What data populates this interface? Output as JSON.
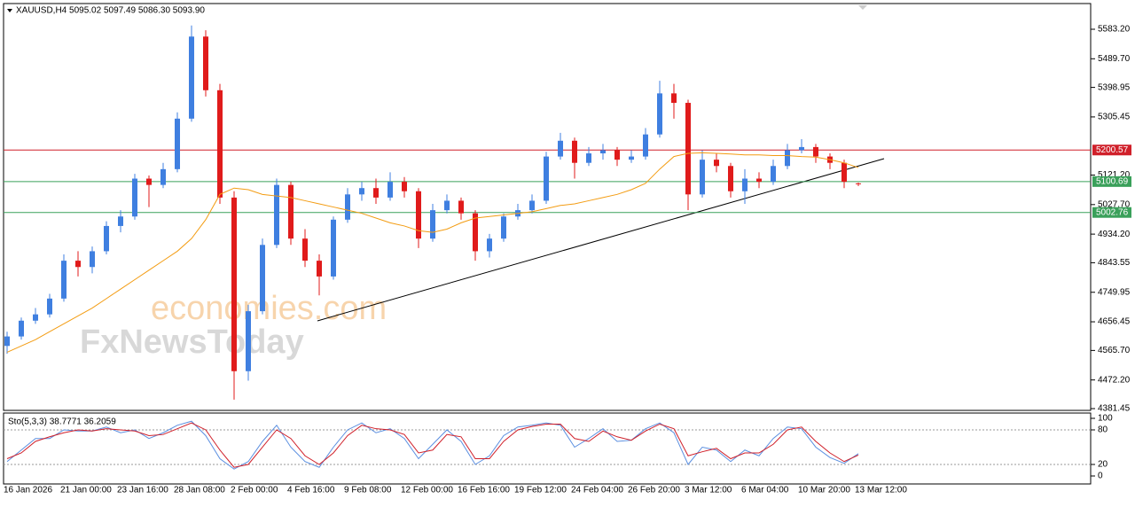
{
  "chart_data": [
    {
      "type": "candlestick",
      "title": "XAUUSD,H4 5095.02 5097.49 5086.30 5093.90",
      "watermark": [
        "economies.com",
        "FxNewsToday"
      ],
      "categories": [
        "16 Jan 2026",
        null,
        null,
        null,
        "21 Jan 00:00",
        null,
        null,
        null,
        "23 Jan 16:00",
        null,
        null,
        null,
        "28 Jan 08:00",
        null,
        null,
        null,
        "2 Feb 00:00",
        null,
        null,
        null,
        "4 Feb 16:00",
        null,
        null,
        null,
        "9 Feb 08:00",
        null,
        null,
        null,
        "12 Feb 00:00",
        null,
        null,
        null,
        "16 Feb 16:00",
        null,
        null,
        null,
        "19 Feb 12:00",
        null,
        null,
        null,
        "24 Feb 04:00",
        null,
        null,
        null,
        "26 Feb 20:00",
        null,
        null,
        null,
        "3 Mar 12:00",
        null,
        null,
        null,
        "6 Mar 04:00",
        null,
        null,
        null,
        "10 Mar 20:00",
        null,
        null,
        null,
        "13 Mar 12:00"
      ],
      "open": [
        4580,
        4610,
        4660,
        4680,
        4730,
        4850,
        4830,
        4880,
        4960,
        4990,
        5110,
        5090,
        5140,
        5300,
        5560,
        5390,
        5050,
        4500,
        4690,
        4900,
        5090,
        4920,
        4850,
        4800,
        4980,
        5060,
        5080,
        5050,
        5100,
        5070,
        4920,
        5010,
        5040,
        5000,
        4880,
        4920,
        4990,
        5010,
        5040,
        5180,
        5230,
        5160,
        5190,
        5200,
        5170,
        5180,
        5250,
        5380,
        5350,
        5060,
        5170,
        5150,
        5070,
        5110,
        5100,
        5150,
        5200,
        5210,
        5180,
        5160,
        5095.02
      ],
      "high": [
        4625,
        4670,
        4700,
        4745,
        4870,
        4880,
        4895,
        4975,
        5010,
        5125,
        5120,
        5160,
        5320,
        5595,
        5580,
        5410,
        5070,
        4710,
        4920,
        5110,
        5100,
        4950,
        4870,
        4990,
        5080,
        5100,
        5110,
        5130,
        5115,
        5080,
        5030,
        5060,
        5050,
        5010,
        4935,
        5000,
        5030,
        5060,
        5195,
        5255,
        5240,
        5210,
        5220,
        5210,
        5200,
        5270,
        5420,
        5410,
        5360,
        5200,
        5190,
        5160,
        5140,
        5130,
        5170,
        5220,
        5235,
        5220,
        5190,
        5170,
        5097.49
      ],
      "low": [
        4555,
        4600,
        4650,
        4670,
        4720,
        4800,
        4810,
        4870,
        4940,
        4980,
        5020,
        5080,
        5130,
        5290,
        5370,
        5030,
        4410,
        4470,
        4680,
        4890,
        4900,
        4830,
        4740,
        4790,
        4970,
        5040,
        5030,
        5040,
        5050,
        4890,
        4910,
        5000,
        4980,
        4850,
        4860,
        4910,
        4980,
        5000,
        5030,
        5170,
        5110,
        5150,
        5170,
        5150,
        5160,
        5170,
        5240,
        5300,
        5010,
        5050,
        5130,
        5050,
        5030,
        5080,
        5090,
        5140,
        5190,
        5160,
        5140,
        5080,
        5086.3
      ],
      "close": [
        4610,
        4660,
        4680,
        4730,
        4850,
        4830,
        4880,
        4960,
        4990,
        5110,
        5090,
        5140,
        5300,
        5560,
        5390,
        5050,
        4500,
        4690,
        4900,
        5090,
        4920,
        4850,
        4800,
        4980,
        5060,
        5080,
        5050,
        5100,
        5070,
        4920,
        5010,
        5040,
        5000,
        4880,
        4920,
        4990,
        5010,
        5040,
        5180,
        5230,
        5160,
        5190,
        5200,
        5170,
        5180,
        5250,
        5380,
        5350,
        5060,
        5170,
        5150,
        5070,
        5110,
        5100,
        5150,
        5200,
        5210,
        5180,
        5160,
        5100,
        5093.9
      ],
      "ma": {
        "color": "#f39c12",
        "values": [
          4560,
          4580,
          4600,
          4625,
          4650,
          4675,
          4700,
          4730,
          4760,
          4790,
          4820,
          4850,
          4880,
          4920,
          4980,
          5060,
          5080,
          5075,
          5060,
          5055,
          5050,
          5040,
          5030,
          5020,
          5010,
          5000,
          4985,
          4970,
          4960,
          4945,
          4940,
          4950,
          4970,
          4985,
          4990,
          4995,
          5000,
          5005,
          5015,
          5025,
          5030,
          5040,
          5050,
          5060,
          5075,
          5095,
          5140,
          5180,
          5190,
          5192,
          5190,
          5188,
          5185,
          5185,
          5183,
          5183,
          5180,
          5178,
          5170,
          5160,
          5145
        ]
      },
      "up_color": "#3f7fe0",
      "down_color": "#e01b1b",
      "levels": [
        {
          "value": 5200.57,
          "color": "#d0202a"
        },
        {
          "value": 5100.69,
          "color": "#3aa05a"
        },
        {
          "value": 5002.76,
          "color": "#3aa05a"
        }
      ],
      "ylim": [
        4375.8,
        5664.6
      ],
      "yticks": [
        {
          "value": 5583.2,
          "label": "5583.20"
        },
        {
          "value": 5489.7,
          "label": "5489.70"
        },
        5398.95,
        5305.45,
        {
          "value": 5121.2,
          "label": "5121.20"
        },
        {
          "value": 5027.7,
          "label": "5027.70"
        },
        {
          "value": 4934.2,
          "label": "4934.20"
        },
        4843.55,
        4749.95,
        4656.45,
        {
          "value": 4565.7,
          "label": "4565.70"
        },
        {
          "value": 4472.2,
          "label": "4472.20"
        },
        4381.45
      ]
    },
    {
      "type": "line",
      "title": "Sto(5,3,3) 38.7771 36.2059",
      "series": [
        {
          "color": "#5b8fe0",
          "values": [
            25,
            45,
            65,
            65,
            80,
            78,
            78,
            85,
            75,
            80,
            65,
            75,
            88,
            95,
            70,
            30,
            12,
            25,
            60,
            88,
            50,
            25,
            15,
            50,
            80,
            92,
            75,
            82,
            65,
            30,
            55,
            80,
            60,
            20,
            35,
            70,
            85,
            88,
            92,
            88,
            50,
            65,
            82,
            60,
            62,
            82,
            92,
            75,
            20,
            50,
            45,
            25,
            45,
            35,
            65,
            85,
            82,
            50,
            32,
            22,
            38.7771
          ]
        },
        {
          "color": "#d0202a",
          "values": [
            30,
            40,
            60,
            68,
            75,
            80,
            78,
            82,
            80,
            78,
            70,
            72,
            82,
            92,
            80,
            45,
            15,
            20,
            50,
            80,
            65,
            35,
            20,
            40,
            70,
            88,
            82,
            80,
            72,
            40,
            45,
            72,
            68,
            30,
            30,
            60,
            80,
            86,
            90,
            90,
            65,
            60,
            78,
            68,
            62,
            78,
            90,
            82,
            35,
            42,
            48,
            30,
            40,
            40,
            55,
            80,
            85,
            60,
            40,
            25,
            36.2059
          ]
        }
      ],
      "levels": [
        80,
        20
      ],
      "ylim": [
        -12.3,
        109.2
      ],
      "yticks": [
        100,
        80,
        20,
        0
      ]
    }
  ]
}
